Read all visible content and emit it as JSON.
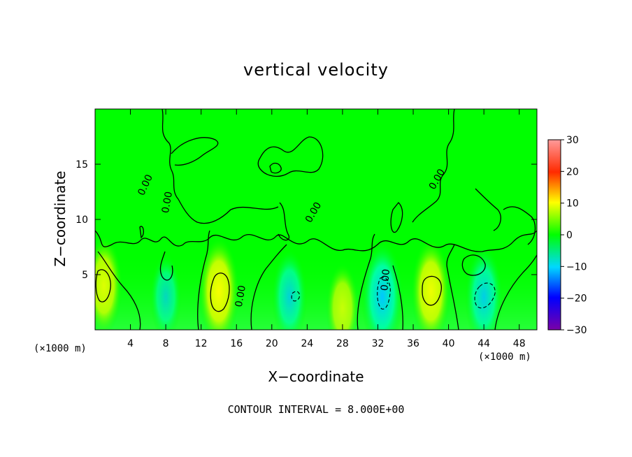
{
  "chart_data": {
    "type": "heatmap",
    "title": "vertical velocity",
    "xlabel": "X−coordinate",
    "ylabel": "Z−coordinate",
    "x_unit": "(×1000 m)",
    "y_unit": "(×1000 m)",
    "xlim": [
      0,
      50
    ],
    "ylim": [
      0,
      20
    ],
    "x_ticks": [
      4,
      8,
      12,
      16,
      20,
      24,
      28,
      32,
      36,
      40,
      44,
      48
    ],
    "y_ticks": [
      5,
      10,
      15
    ],
    "colorbar": {
      "range": [
        -30,
        30
      ],
      "ticks": [
        30,
        20,
        10,
        0,
        -10,
        -20,
        -30
      ],
      "tick_labels": [
        "30",
        "20",
        "10",
        "0",
        "−10",
        "−20",
        "−30"
      ],
      "colors": [
        "#7a00a8",
        "#0000ff",
        "#00d8ff",
        "#00ff00",
        "#ffff00",
        "#ff2a00",
        "#ff9a9a"
      ]
    },
    "background_value": 0,
    "contour_interval": 8,
    "contour_label": "0.00",
    "contour_interval_text": "CONTOUR INTERVAL = 8.000E+00",
    "features": [
      {
        "x": 1.0,
        "z": 4.0,
        "value": 9
      },
      {
        "x": 8.0,
        "z": 3.0,
        "value": -5
      },
      {
        "x": 14.0,
        "z": 3.5,
        "value": 12
      },
      {
        "x": 22.0,
        "z": 3.0,
        "value": -8
      },
      {
        "x": 28.0,
        "z": 2.0,
        "value": 6
      },
      {
        "x": 32.5,
        "z": 3.0,
        "value": -13
      },
      {
        "x": 38.0,
        "z": 3.5,
        "value": 11
      },
      {
        "x": 44.0,
        "z": 3.0,
        "value": -10
      }
    ]
  }
}
